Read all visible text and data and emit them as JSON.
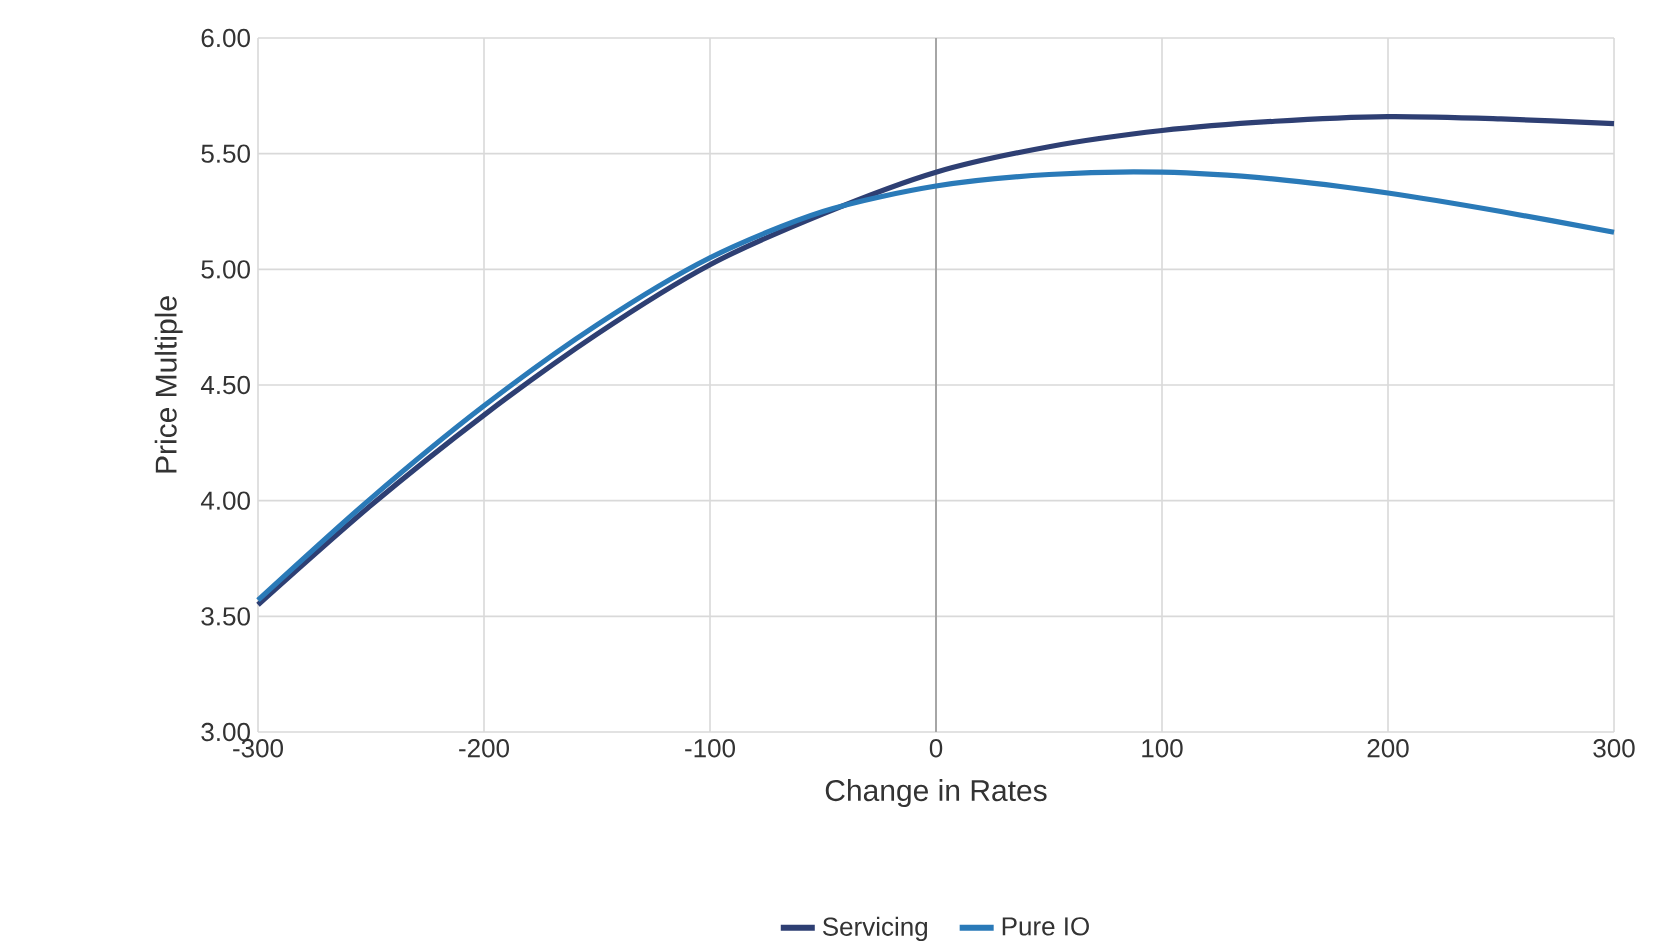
{
  "chart_data": {
    "type": "line",
    "xlabel": "Change in Rates",
    "ylabel": "Price Multiple",
    "x": [
      -300,
      -250,
      -200,
      -150,
      -100,
      -50,
      0,
      50,
      100,
      150,
      200,
      250,
      300
    ],
    "series": [
      {
        "name": "Servicing",
        "color": "#2e3f73",
        "values": [
          3.55,
          3.98,
          4.37,
          4.72,
          5.02,
          5.24,
          5.42,
          5.53,
          5.6,
          5.64,
          5.66,
          5.65,
          5.63
        ]
      },
      {
        "name": "Pure IO",
        "color": "#2a7ab8",
        "values": [
          3.57,
          4.01,
          4.41,
          4.76,
          5.05,
          5.25,
          5.36,
          5.41,
          5.42,
          5.39,
          5.33,
          5.25,
          5.16
        ]
      }
    ],
    "xlim": [
      -300,
      300
    ],
    "xticks": [
      -300,
      -200,
      -100,
      0,
      100,
      200,
      300
    ],
    "ylim": [
      3,
      6
    ],
    "yticks": [
      {
        "value": 3,
        "label": "3.00"
      },
      {
        "value": 3.5,
        "label": "3.50"
      },
      {
        "value": 4,
        "label": "4.00"
      },
      {
        "value": 4.5,
        "label": "4.50"
      },
      {
        "value": 5,
        "label": "5.00"
      },
      {
        "value": 5.5,
        "label": "5.50"
      },
      {
        "value": 6,
        "label": "6.00"
      }
    ],
    "grid": true,
    "legend": "bottom",
    "marker": "none",
    "line_style": "solid",
    "ref_lines": [
      {
        "axis": "x",
        "value": 0,
        "color": "#a6a6a6"
      }
    ]
  }
}
